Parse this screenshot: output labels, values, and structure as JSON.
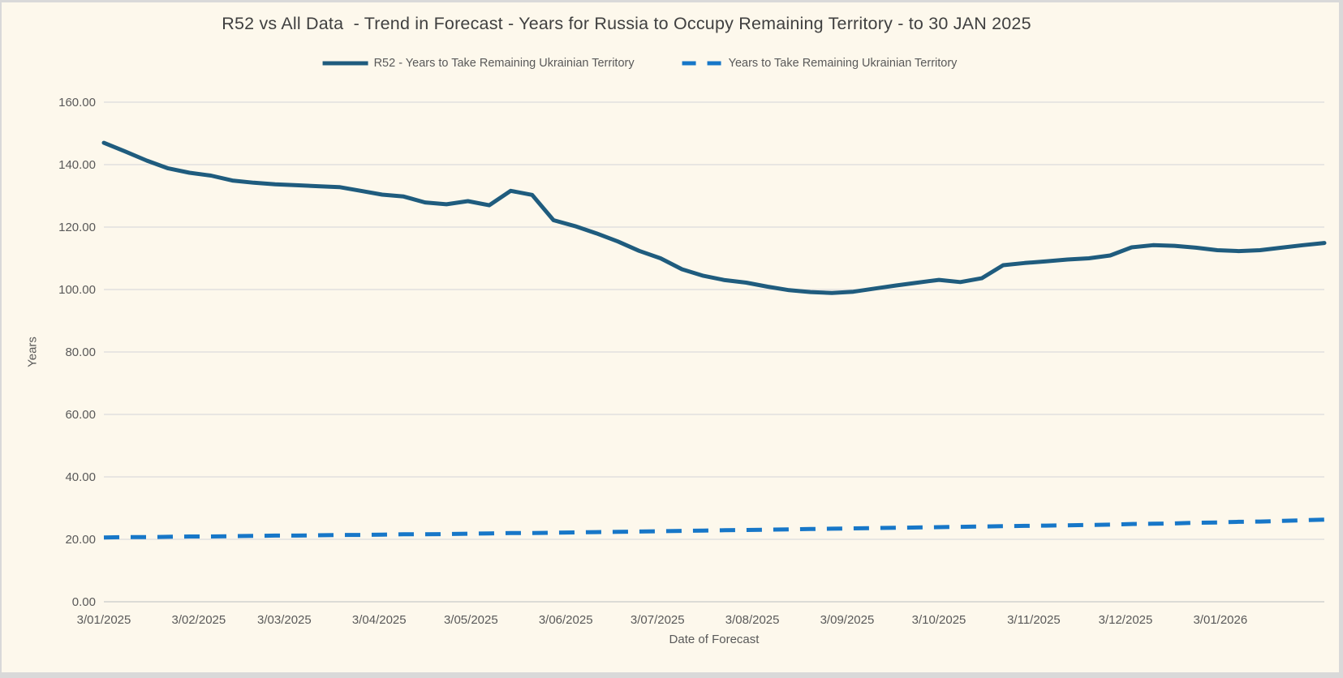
{
  "colors": {
    "background": "#fdf8ec",
    "frame": "#d9d9d9",
    "gridline": "#dcdcdc",
    "axis_line": "#c9c9c9",
    "text": "#595959",
    "title_text": "#404040",
    "series_r52": "#1f5c7e",
    "series_all_data": "#1777c8"
  },
  "chart_data": {
    "type": "line",
    "title": "R52 vs All Data  - Trend in Forecast - Years for Russia to Occupy Remaining Territory - to 30 JAN 2025",
    "xlabel": "Date of Forecast",
    "ylabel": "Years",
    "ylim": [
      0,
      160
    ],
    "y_tick_step": 20,
    "y_tick_format_decimals": 2,
    "grid": true,
    "legend_position": "top",
    "x_tick_labels": [
      "3/01/2025",
      "3/02/2025",
      "3/03/2025",
      "3/04/2025",
      "3/05/2025",
      "3/06/2025",
      "3/07/2025",
      "3/08/2025",
      "3/09/2025",
      "3/10/2025",
      "3/11/2025",
      "3/12/2025",
      "3/01/2026"
    ],
    "x_tick_date_format": "d/mm/yyyy",
    "point_interval_days": 7,
    "series": [
      {
        "name": "R52 - Years to Take Remaining Ukrainian Territory",
        "style": "solid",
        "color": "#1f5c7e",
        "values": [
          147.0,
          144.2,
          141.3,
          138.8,
          137.4,
          136.5,
          134.9,
          134.2,
          133.7,
          133.4,
          133.1,
          132.8,
          131.6,
          130.4,
          129.8,
          127.9,
          127.3,
          128.3,
          127.0,
          131.6,
          130.3,
          122.2,
          120.3,
          118.0,
          115.4,
          112.4,
          110.0,
          106.5,
          104.4,
          103.0,
          102.2,
          100.9,
          99.8,
          99.2,
          98.9,
          99.3,
          100.3,
          101.3,
          102.2,
          103.1,
          102.4,
          103.6,
          107.8,
          108.5,
          109.0,
          109.6,
          110.0,
          110.9,
          113.5,
          114.2,
          114.0,
          113.4,
          112.6,
          112.3,
          112.6,
          113.4,
          114.2,
          114.9
        ]
      },
      {
        "name": "Years to Take Remaining Ukrainian Territory",
        "style": "dashed",
        "color": "#1777c8",
        "values": [
          20.6,
          20.7,
          20.7,
          20.8,
          20.9,
          20.9,
          21.0,
          21.1,
          21.2,
          21.2,
          21.3,
          21.4,
          21.4,
          21.5,
          21.6,
          21.6,
          21.7,
          21.8,
          21.9,
          22.0,
          22.0,
          22.1,
          22.2,
          22.3,
          22.4,
          22.5,
          22.6,
          22.7,
          22.8,
          22.9,
          23.0,
          23.1,
          23.2,
          23.3,
          23.4,
          23.5,
          23.6,
          23.7,
          23.8,
          23.9,
          24.0,
          24.1,
          24.2,
          24.3,
          24.4,
          24.5,
          24.6,
          24.7,
          24.9,
          25.0,
          25.1,
          25.3,
          25.4,
          25.6,
          25.7,
          25.9,
          26.1,
          26.3
        ]
      }
    ]
  }
}
